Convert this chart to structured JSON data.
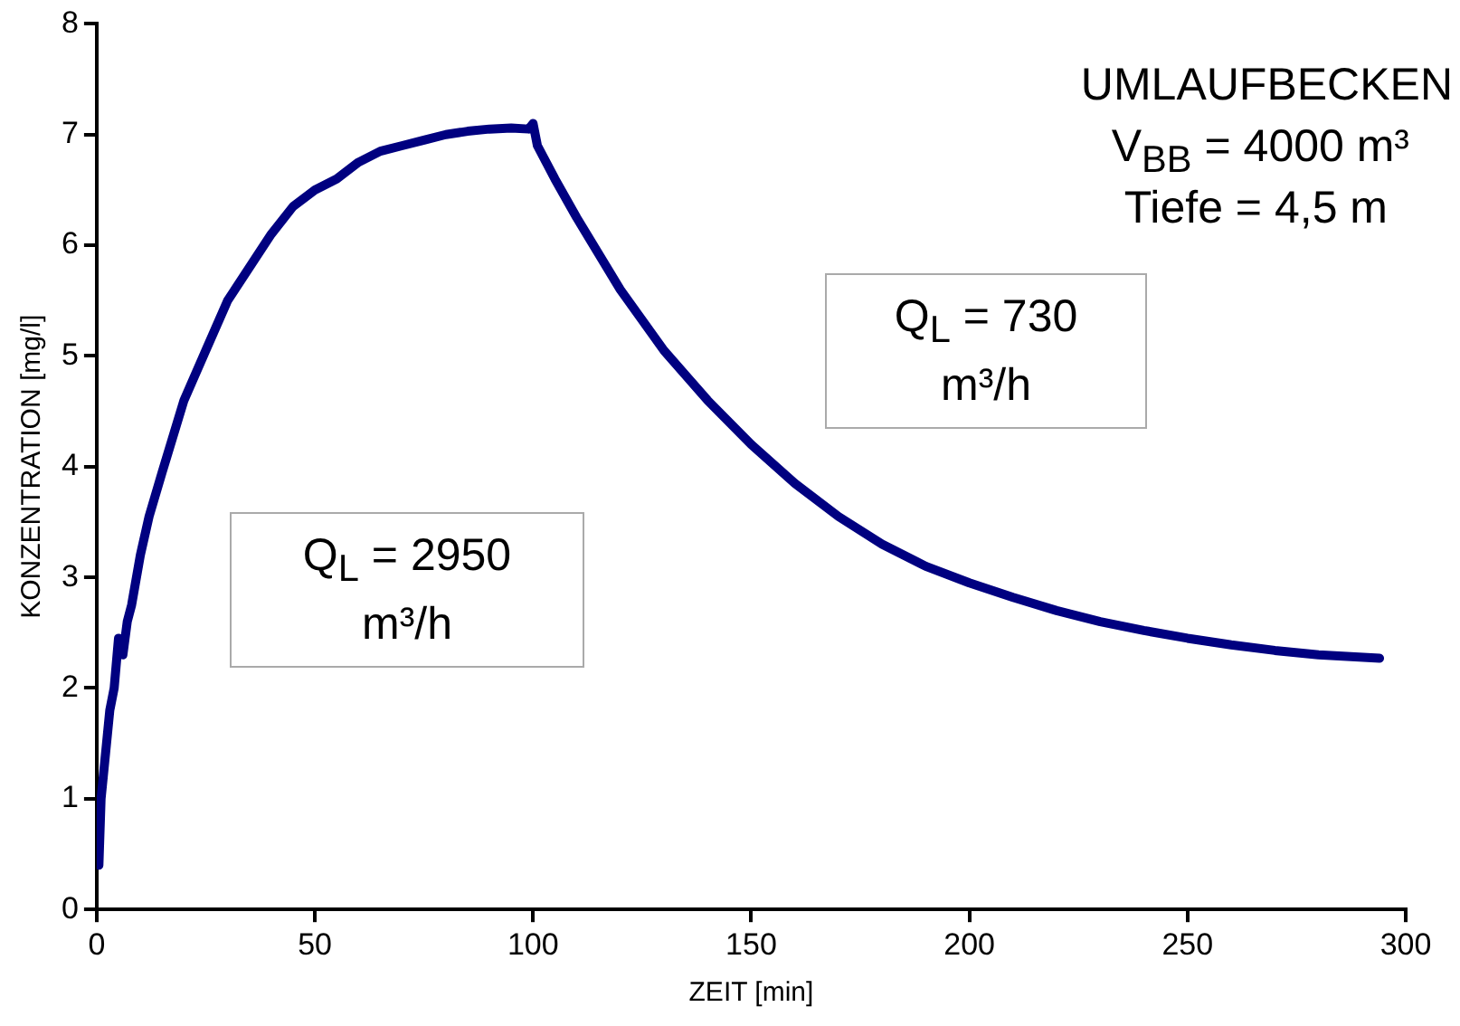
{
  "chart_data": {
    "type": "line",
    "xlabel": "ZEIT [min]",
    "ylabel": "KONZENTRATION [mg/l]",
    "annotations": [
      "UMLAUFBECKEN",
      "V$_{BB}$ = 4000 m³",
      "Tiefe = 4,5 m",
      "Q$_{L}$ = 2950 m³/h",
      "Q$_{L}$ = 730 m³/h"
    ],
    "x": [
      0.5,
      1,
      2,
      3,
      4,
      5,
      6,
      7,
      8,
      10,
      12,
      15,
      20,
      25,
      30,
      35,
      40,
      45,
      50,
      55,
      60,
      65,
      70,
      75,
      80,
      85,
      90,
      95,
      99,
      100,
      101,
      105,
      110,
      120,
      130,
      140,
      150,
      160,
      170,
      180,
      190,
      200,
      210,
      220,
      230,
      240,
      250,
      260,
      270,
      280,
      294
    ],
    "series": [
      {
        "color": "#000080",
        "values": [
          0.4,
          1.0,
          1.4,
          1.8,
          2.0,
          2.45,
          2.3,
          2.6,
          2.75,
          3.2,
          3.55,
          3.95,
          4.6,
          5.05,
          5.5,
          5.8,
          6.1,
          6.35,
          6.5,
          6.6,
          6.75,
          6.85,
          6.9,
          6.95,
          7.0,
          7.03,
          7.05,
          7.06,
          7.05,
          7.1,
          6.9,
          6.6,
          6.25,
          5.6,
          5.05,
          4.6,
          4.2,
          3.85,
          3.55,
          3.3,
          3.1,
          2.95,
          2.82,
          2.7,
          2.6,
          2.52,
          2.45,
          2.39,
          2.34,
          2.3,
          2.27
        ]
      }
    ],
    "xlim": [
      0,
      300
    ],
    "xticks": [
      0,
      50,
      100,
      150,
      200,
      250,
      300
    ],
    "ylim": [
      0,
      8
    ],
    "yticks": [
      0,
      1,
      2,
      3,
      4,
      5,
      6,
      7,
      8
    ],
    "grid": false,
    "legend": false,
    "marker": "none",
    "line_style": "solid"
  }
}
